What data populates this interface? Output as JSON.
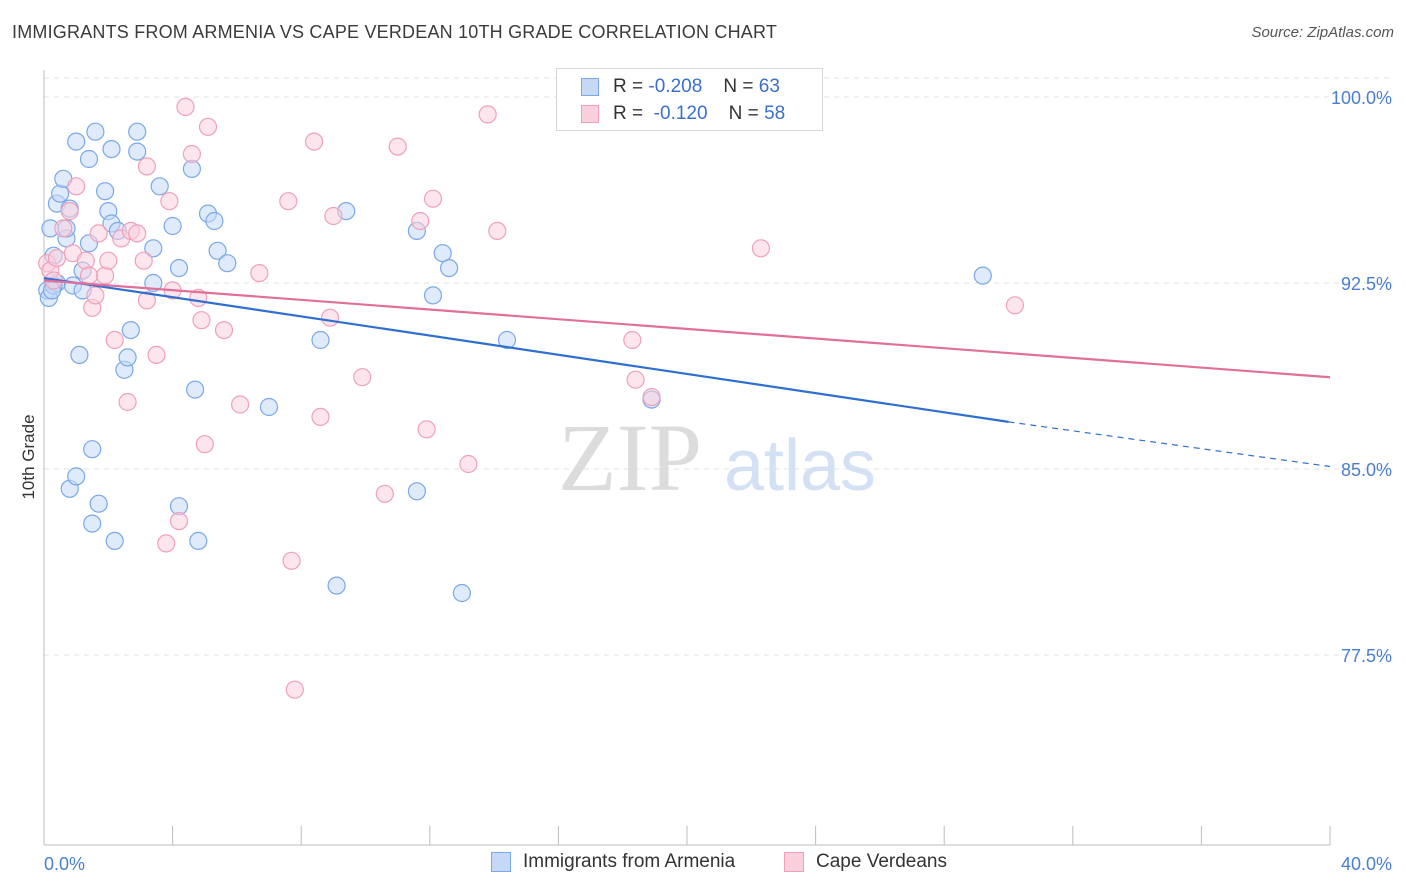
{
  "title": "IMMIGRANTS FROM ARMENIA VS CAPE VERDEAN 10TH GRADE CORRELATION CHART",
  "source": "Source: ZipAtlas.com",
  "watermark": {
    "zip": "ZIP",
    "atlas": "atlas"
  },
  "legend": {
    "r_label": "R =",
    "n_label": "N =",
    "series": [
      {
        "r": "-0.208",
        "n": "63"
      },
      {
        "r": "-0.120",
        "n": "58"
      }
    ]
  },
  "chart_data": {
    "type": "scatter",
    "title": "IMMIGRANTS FROM ARMENIA VS CAPE VERDEAN 10TH GRADE CORRELATION CHART",
    "xlabel": "",
    "ylabel": "10th Grade",
    "xlim": [
      0,
      40
    ],
    "ylim": [
      70.0,
      101.0
    ],
    "x_ticks": [
      "0.0%",
      "40.0%"
    ],
    "y_ticks": [
      {
        "value": 100.0,
        "label": "100.0%"
      },
      {
        "value": 92.5,
        "label": "92.5%"
      },
      {
        "value": 85.0,
        "label": "85.0%"
      },
      {
        "value": 77.5,
        "label": "77.5%"
      }
    ],
    "grid": true,
    "series": [
      {
        "name": "Immigrants from Armenia",
        "color": "#7aa8e8",
        "line_color": "#2f6fd0",
        "trend": {
          "x0": 0,
          "y0": 92.7,
          "x1": 30.0,
          "y1": 86.9,
          "dash_to_x": 40,
          "dash_to_y": 85.1
        },
        "points": [
          [
            0.1,
            92.2
          ],
          [
            0.2,
            94.7
          ],
          [
            0.3,
            93.6
          ],
          [
            0.4,
            92.5
          ],
          [
            0.4,
            95.7
          ],
          [
            0.5,
            96.1
          ],
          [
            0.6,
            96.7
          ],
          [
            0.7,
            94.3
          ],
          [
            0.7,
            94.7
          ],
          [
            0.8,
            95.5
          ],
          [
            0.9,
            92.4
          ],
          [
            0.8,
            84.2
          ],
          [
            1.0,
            98.2
          ],
          [
            1.0,
            84.7
          ],
          [
            1.1,
            89.6
          ],
          [
            1.2,
            92.2
          ],
          [
            1.2,
            93.0
          ],
          [
            1.4,
            94.1
          ],
          [
            1.4,
            97.5
          ],
          [
            1.5,
            85.8
          ],
          [
            1.5,
            82.8
          ],
          [
            1.6,
            98.6
          ],
          [
            1.7,
            83.6
          ],
          [
            1.9,
            96.2
          ],
          [
            2.0,
            95.4
          ],
          [
            2.1,
            94.9
          ],
          [
            2.1,
            97.9
          ],
          [
            2.2,
            82.1
          ],
          [
            2.3,
            94.6
          ],
          [
            2.5,
            89.0
          ],
          [
            2.6,
            89.5
          ],
          [
            2.7,
            90.6
          ],
          [
            2.9,
            98.6
          ],
          [
            2.9,
            97.8
          ],
          [
            3.4,
            92.5
          ],
          [
            3.4,
            93.9
          ],
          [
            3.6,
            96.4
          ],
          [
            4.0,
            94.8
          ],
          [
            4.2,
            93.1
          ],
          [
            4.2,
            83.5
          ],
          [
            4.6,
            97.1
          ],
          [
            4.7,
            88.2
          ],
          [
            4.8,
            82.1
          ],
          [
            5.1,
            95.3
          ],
          [
            5.3,
            95.0
          ],
          [
            5.4,
            93.8
          ],
          [
            5.7,
            93.3
          ],
          [
            7.0,
            87.5
          ],
          [
            8.6,
            90.2
          ],
          [
            9.1,
            80.3
          ],
          [
            9.4,
            95.4
          ],
          [
            11.6,
            94.6
          ],
          [
            11.6,
            84.1
          ],
          [
            12.1,
            92.0
          ],
          [
            12.4,
            93.7
          ],
          [
            12.6,
            93.1
          ],
          [
            13.0,
            80.0
          ],
          [
            14.4,
            90.2
          ],
          [
            18.9,
            87.8
          ],
          [
            29.2,
            92.8
          ],
          [
            0.15,
            91.9
          ],
          [
            0.3,
            92.4
          ],
          [
            0.25,
            92.2
          ]
        ]
      },
      {
        "name": "Cape Verdeans",
        "color": "#f0a0bc",
        "line_color": "#e0709a",
        "trend": {
          "x0": 0,
          "y0": 92.6,
          "x1": 40,
          "y1": 88.7
        },
        "points": [
          [
            0.1,
            93.3
          ],
          [
            0.2,
            93.0
          ],
          [
            0.3,
            92.6
          ],
          [
            0.4,
            93.5
          ],
          [
            0.6,
            94.7
          ],
          [
            0.8,
            95.4
          ],
          [
            0.9,
            93.7
          ],
          [
            1.0,
            96.4
          ],
          [
            1.3,
            93.4
          ],
          [
            1.4,
            92.8
          ],
          [
            1.5,
            91.5
          ],
          [
            1.6,
            92.0
          ],
          [
            1.7,
            94.5
          ],
          [
            1.9,
            92.8
          ],
          [
            2.0,
            93.4
          ],
          [
            2.2,
            90.2
          ],
          [
            2.4,
            94.3
          ],
          [
            2.6,
            87.7
          ],
          [
            2.7,
            94.6
          ],
          [
            2.9,
            94.5
          ],
          [
            3.1,
            93.4
          ],
          [
            3.2,
            97.2
          ],
          [
            3.2,
            91.8
          ],
          [
            3.5,
            89.6
          ],
          [
            3.8,
            82.0
          ],
          [
            3.9,
            95.8
          ],
          [
            4.0,
            92.2
          ],
          [
            4.2,
            82.9
          ],
          [
            4.4,
            99.6
          ],
          [
            4.6,
            97.7
          ],
          [
            4.8,
            91.9
          ],
          [
            4.9,
            91.0
          ],
          [
            5.0,
            86.0
          ],
          [
            5.1,
            98.8
          ],
          [
            5.6,
            90.6
          ],
          [
            6.1,
            87.6
          ],
          [
            6.7,
            92.9
          ],
          [
            7.6,
            95.8
          ],
          [
            7.7,
            81.3
          ],
          [
            7.8,
            76.1
          ],
          [
            8.4,
            98.2
          ],
          [
            8.6,
            87.1
          ],
          [
            8.9,
            91.1
          ],
          [
            9.0,
            95.2
          ],
          [
            9.9,
            88.7
          ],
          [
            10.6,
            84.0
          ],
          [
            11.0,
            98.0
          ],
          [
            11.7,
            95.0
          ],
          [
            11.9,
            86.6
          ],
          [
            12.1,
            95.9
          ],
          [
            13.2,
            85.2
          ],
          [
            13.8,
            99.3
          ],
          [
            14.1,
            94.6
          ],
          [
            18.3,
            90.2
          ],
          [
            18.4,
            88.6
          ],
          [
            18.9,
            87.9
          ],
          [
            22.3,
            93.9
          ],
          [
            30.2,
            91.6
          ]
        ]
      }
    ]
  },
  "bottom_legend": {
    "items": [
      "Immigrants from Armenia",
      "Cape Verdeans"
    ]
  },
  "colors": {
    "blue_fill": "#c5d8f5",
    "blue_edge": "#7aa8e8",
    "pink_fill": "#f9cfdc",
    "pink_edge": "#f0a0bc",
    "tick_text": "#4a7fd0"
  }
}
